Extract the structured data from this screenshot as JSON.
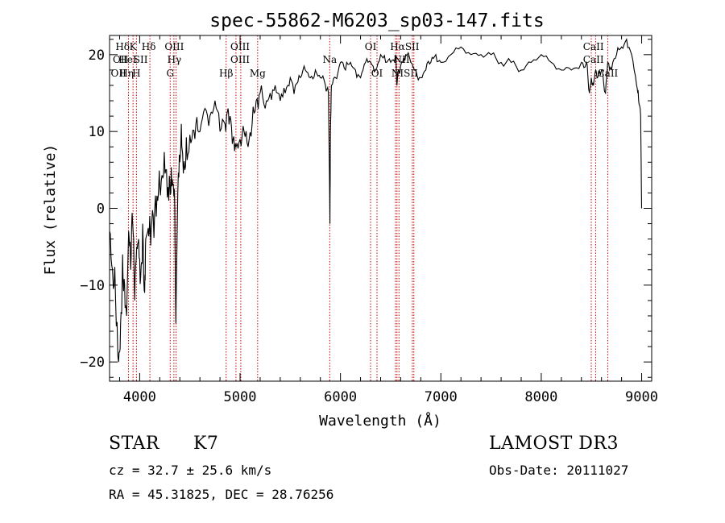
{
  "chart_data": {
    "type": "line",
    "title": "spec-55862-M6203_sp03-147.fits",
    "xlabel": "Wavelength (Å)",
    "ylabel": "Flux (relative)",
    "xlim": [
      3700,
      9100
    ],
    "ylim": [
      -22.5,
      22.5
    ],
    "xticks": [
      4000,
      5000,
      6000,
      7000,
      8000,
      9000
    ],
    "yticks": [
      -20,
      -10,
      0,
      10,
      20
    ],
    "series": [
      {
        "name": "flux",
        "x": [
          3700,
          3730,
          3760,
          3790,
          3810,
          3830,
          3850,
          3870,
          3890,
          3910,
          3930,
          3950,
          3970,
          3990,
          4010,
          4030,
          4050,
          4060,
          4080,
          4100,
          4120,
          4150,
          4180,
          4200,
          4230,
          4260,
          4290,
          4310,
          4330,
          4350,
          4360,
          4380,
          4400,
          4420,
          4450,
          4480,
          4520,
          4560,
          4600,
          4650,
          4700,
          4750,
          4800,
          4850,
          4880,
          4900,
          4930,
          4960,
          5000,
          5040,
          5080,
          5120,
          5160,
          5200,
          5250,
          5300,
          5350,
          5400,
          5450,
          5500,
          5550,
          5600,
          5650,
          5700,
          5750,
          5800,
          5850,
          5880,
          5890,
          5895,
          5900,
          5910,
          5950,
          6000,
          6050,
          6100,
          6150,
          6200,
          6250,
          6300,
          6350,
          6400,
          6450,
          6500,
          6550,
          6562,
          6580,
          6620,
          6650,
          6700,
          6750,
          6800,
          6850,
          6900,
          6950,
          7000,
          7100,
          7200,
          7300,
          7400,
          7500,
          7600,
          7700,
          7800,
          7900,
          8000,
          8100,
          8200,
          8300,
          8400,
          8450,
          8480,
          8498,
          8520,
          8542,
          8560,
          8600,
          8640,
          8662,
          8700,
          8750,
          8800,
          8850,
          8900,
          8950,
          8970,
          8990,
          9000
        ],
        "y": [
          -3,
          -8,
          -12,
          -20,
          -15,
          -6,
          -10,
          -14,
          -3,
          -8,
          -2,
          -12,
          -5,
          -4,
          -9,
          -2,
          -11,
          -4,
          -3,
          -1,
          -2,
          0,
          1,
          3,
          4,
          5,
          1,
          2,
          3,
          0,
          -15,
          2,
          6,
          8,
          5,
          7,
          9,
          11,
          10,
          13,
          12,
          14,
          10,
          11,
          13,
          12,
          9,
          8,
          9,
          10,
          8,
          11,
          14,
          15,
          13,
          15,
          16,
          14,
          15,
          17,
          16,
          17,
          18,
          17,
          18,
          17,
          16,
          15,
          5,
          -2,
          10,
          16,
          17,
          19,
          18,
          19,
          18,
          17,
          19,
          19,
          18,
          20,
          19,
          19,
          20,
          16,
          18,
          19,
          20,
          19,
          18,
          17,
          18,
          19,
          20,
          19,
          20,
          21,
          20,
          20,
          20,
          19,
          19,
          18,
          19,
          20,
          19,
          18,
          18,
          19,
          19,
          15,
          17,
          16,
          18,
          17,
          18,
          15,
          19,
          18,
          20,
          21,
          22,
          20,
          16,
          14,
          12,
          0
        ]
      }
    ],
    "lines": [
      {
        "label": "Hδ",
        "x": 3889
      },
      {
        "label": "K",
        "x": 3934
      },
      {
        "label": "H",
        "x": 3968
      },
      {
        "label": "Hδ",
        "x": 4102
      },
      {
        "label": "G",
        "x": 4304
      },
      {
        "label": "Hγ",
        "x": 4341
      },
      {
        "label": "OIII",
        "x": 4363
      },
      {
        "label": "Hβ",
        "x": 4861
      },
      {
        "label": "OIII",
        "x": 4959
      },
      {
        "label": "OIII",
        "x": 5007
      },
      {
        "label": "Mg",
        "x": 5175
      },
      {
        "label": "Na",
        "x": 5893
      },
      {
        "label": "OI",
        "x": 6300
      },
      {
        "label": "OI",
        "x": 6364
      },
      {
        "label": "NII",
        "x": 6548
      },
      {
        "label": "Hα",
        "x": 6563
      },
      {
        "label": "NII",
        "x": 6583
      },
      {
        "label": "SII",
        "x": 6716
      },
      {
        "label": "SII",
        "x": 6731
      },
      {
        "label": "CaII",
        "x": 8498
      },
      {
        "label": "CaII",
        "x": 8542
      },
      {
        "label": "CaII",
        "x": 8662
      }
    ],
    "line_labels": [
      {
        "text": "Hδ",
        "x": 3830,
        "row": 1
      },
      {
        "text": "K",
        "x": 3934,
        "row": 1
      },
      {
        "text": "Hδ",
        "x": 4090,
        "row": 1
      },
      {
        "text": "OIII",
        "x": 4345,
        "row": 1
      },
      {
        "text": "OIII",
        "x": 5000,
        "row": 1
      },
      {
        "text": "OI",
        "x": 6300,
        "row": 1
      },
      {
        "text": "HαSII",
        "x": 6640,
        "row": 1
      },
      {
        "text": "CaII",
        "x": 8520,
        "row": 1
      },
      {
        "text": "OII",
        "x": 3810,
        "row": 2
      },
      {
        "text": "HeI",
        "x": 3880,
        "row": 2
      },
      {
        "text": "SII",
        "x": 4010,
        "row": 2
      },
      {
        "text": "Hγ",
        "x": 4345,
        "row": 2
      },
      {
        "text": "OIII",
        "x": 5000,
        "row": 2
      },
      {
        "text": "Na",
        "x": 5893,
        "row": 2
      },
      {
        "text": "NII",
        "x": 6610,
        "row": 2
      },
      {
        "text": "CaII",
        "x": 8520,
        "row": 2
      },
      {
        "text": "OII",
        "x": 3790,
        "row": 3
      },
      {
        "text": "Hη",
        "x": 3870,
        "row": 3
      },
      {
        "text": "H",
        "x": 3968,
        "row": 3
      },
      {
        "text": "G",
        "x": 4304,
        "row": 3
      },
      {
        "text": "Hβ",
        "x": 4861,
        "row": 3
      },
      {
        "text": "Mg",
        "x": 5175,
        "row": 3
      },
      {
        "text": "OI",
        "x": 6364,
        "row": 3
      },
      {
        "text": "NISII",
        "x": 6640,
        "row": 3
      },
      {
        "text": "CaII",
        "x": 8662,
        "row": 3
      }
    ]
  },
  "footer": {
    "object_class": "STAR",
    "subclass": "K7",
    "survey": "LAMOST DR3",
    "redshift": "cz = 32.7 ± 25.6 km/s",
    "obs_date": "Obs-Date: 20111027",
    "coords": "RA =  45.31825, DEC =  28.76256"
  },
  "colors": {
    "spectrum": "#000000",
    "line_markers": "#cc0000",
    "axes": "#000000"
  }
}
